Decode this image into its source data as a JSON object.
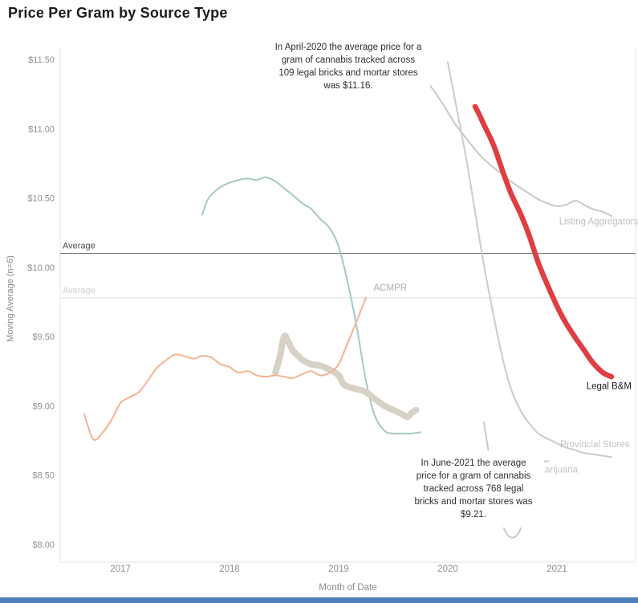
{
  "title": "Price Per Gram by Source Type",
  "footer": {
    "bar_color": "#4e7fba"
  },
  "chart_data": {
    "type": "line",
    "title": "Price Per Gram by Source Type",
    "x_axis": {
      "title": "Month of Date",
      "ticks": [
        {
          "v": 2017,
          "label": "2017"
        },
        {
          "v": 2018,
          "label": "2018"
        },
        {
          "v": 2019,
          "label": "2019"
        },
        {
          "v": 2020,
          "label": "2020"
        },
        {
          "v": 2021,
          "label": "2021"
        }
      ]
    },
    "y_axis": {
      "title": "Moving Average (n=6)",
      "ticks": [
        {
          "v": 11.5,
          "label": "$11.50"
        },
        {
          "v": 11.0,
          "label": "$11.00"
        },
        {
          "v": 10.5,
          "label": "$10.50"
        },
        {
          "v": 10.0,
          "label": "$10.00"
        },
        {
          "v": 9.5,
          "label": "$9.50"
        },
        {
          "v": 9.0,
          "label": "$9.00"
        },
        {
          "v": 8.5,
          "label": "$8.50"
        },
        {
          "v": 8.0,
          "label": "$8.00"
        }
      ],
      "range": [
        7.9,
        11.6
      ]
    },
    "reference_lines": [
      {
        "label": "Average",
        "value": 10.1,
        "color": "#5f5f5f",
        "label_color": "#4a4a4a"
      },
      {
        "label": "Average",
        "value": 9.78,
        "color": "#dcdcdc",
        "label_color": "#cfcfcf"
      }
    ],
    "series": [
      {
        "id": "teal",
        "label": "",
        "color": "#a6c9c3",
        "width": 2,
        "label_color": "#a6c9c3",
        "label_at": null,
        "points": [
          [
            2017.75,
            10.38
          ],
          [
            2017.79,
            10.47
          ],
          [
            2017.83,
            10.52
          ],
          [
            2017.92,
            10.58
          ],
          [
            2018.0,
            10.61
          ],
          [
            2018.08,
            10.63
          ],
          [
            2018.17,
            10.64
          ],
          [
            2018.25,
            10.63
          ],
          [
            2018.33,
            10.65
          ],
          [
            2018.42,
            10.62
          ],
          [
            2018.5,
            10.57
          ],
          [
            2018.58,
            10.52
          ],
          [
            2018.67,
            10.46
          ],
          [
            2018.75,
            10.42
          ],
          [
            2018.83,
            10.35
          ],
          [
            2018.92,
            10.28
          ],
          [
            2019.0,
            10.15
          ],
          [
            2019.08,
            9.9
          ],
          [
            2019.17,
            9.55
          ],
          [
            2019.25,
            9.18
          ],
          [
            2019.33,
            8.93
          ],
          [
            2019.42,
            8.82
          ],
          [
            2019.5,
            8.8
          ],
          [
            2019.58,
            8.8
          ],
          [
            2019.67,
            8.8
          ],
          [
            2019.75,
            8.81
          ]
        ]
      },
      {
        "id": "beige",
        "label": "",
        "color": "#d8d1c5",
        "width": 8,
        "label_color": "#d8d1c5",
        "label_at": null,
        "points": [
          [
            2018.42,
            9.24
          ],
          [
            2018.46,
            9.35
          ],
          [
            2018.5,
            9.5
          ],
          [
            2018.54,
            9.46
          ],
          [
            2018.58,
            9.4
          ],
          [
            2018.63,
            9.36
          ],
          [
            2018.67,
            9.33
          ],
          [
            2018.75,
            9.3
          ],
          [
            2018.83,
            9.29
          ],
          [
            2018.92,
            9.26
          ],
          [
            2019.0,
            9.22
          ],
          [
            2019.04,
            9.16
          ],
          [
            2019.08,
            9.14
          ],
          [
            2019.17,
            9.12
          ],
          [
            2019.25,
            9.1
          ],
          [
            2019.33,
            9.05
          ],
          [
            2019.42,
            9.0
          ],
          [
            2019.5,
            8.97
          ],
          [
            2019.58,
            8.94
          ],
          [
            2019.63,
            8.92
          ],
          [
            2019.67,
            8.95
          ],
          [
            2019.71,
            8.97
          ]
        ]
      },
      {
        "id": "acmpr",
        "label": "ACMPR",
        "color": "#f4b393",
        "width": 2,
        "label_color": "#b5aca6",
        "label_at": [
          2019.32,
          9.83
        ],
        "points": [
          [
            2016.67,
            8.94
          ],
          [
            2016.75,
            8.76
          ],
          [
            2016.83,
            8.8
          ],
          [
            2016.92,
            8.9
          ],
          [
            2017.0,
            9.02
          ],
          [
            2017.08,
            9.06
          ],
          [
            2017.17,
            9.1
          ],
          [
            2017.25,
            9.18
          ],
          [
            2017.33,
            9.27
          ],
          [
            2017.42,
            9.33
          ],
          [
            2017.5,
            9.37
          ],
          [
            2017.58,
            9.36
          ],
          [
            2017.67,
            9.34
          ],
          [
            2017.75,
            9.36
          ],
          [
            2017.83,
            9.35
          ],
          [
            2017.92,
            9.3
          ],
          [
            2018.0,
            9.28
          ],
          [
            2018.08,
            9.24
          ],
          [
            2018.17,
            9.25
          ],
          [
            2018.25,
            9.22
          ],
          [
            2018.33,
            9.21
          ],
          [
            2018.42,
            9.22
          ],
          [
            2018.5,
            9.21
          ],
          [
            2018.58,
            9.2
          ],
          [
            2018.67,
            9.23
          ],
          [
            2018.75,
            9.25
          ],
          [
            2018.83,
            9.22
          ],
          [
            2018.92,
            9.24
          ],
          [
            2019.0,
            9.3
          ],
          [
            2019.08,
            9.45
          ],
          [
            2019.17,
            9.62
          ],
          [
            2019.25,
            9.78
          ]
        ]
      },
      {
        "id": "listing-aggregators",
        "label": "Listing Aggregators",
        "color": "#c6cac4",
        "width": 2,
        "label_color": "#c2bfbc",
        "label_at": [
          2021.02,
          10.31
        ],
        "points": [
          [
            2019.58,
            11.33
          ],
          [
            2019.67,
            11.43
          ],
          [
            2019.75,
            11.4
          ],
          [
            2019.83,
            11.32
          ],
          [
            2019.92,
            11.22
          ],
          [
            2020.0,
            11.12
          ],
          [
            2020.08,
            11.02
          ],
          [
            2020.17,
            10.93
          ],
          [
            2020.25,
            10.85
          ],
          [
            2020.33,
            10.78
          ],
          [
            2020.42,
            10.72
          ],
          [
            2020.5,
            10.67
          ],
          [
            2020.58,
            10.62
          ],
          [
            2020.67,
            10.57
          ],
          [
            2020.75,
            10.53
          ],
          [
            2020.83,
            10.49
          ],
          [
            2020.92,
            10.46
          ],
          [
            2021.0,
            10.44
          ],
          [
            2021.08,
            10.45
          ],
          [
            2021.17,
            10.48
          ],
          [
            2021.25,
            10.45
          ],
          [
            2021.33,
            10.42
          ],
          [
            2021.42,
            10.4
          ],
          [
            2021.5,
            10.37
          ]
        ]
      },
      {
        "id": "provincial-stores",
        "label": "Provincial Stores",
        "color": "#c9cdc9",
        "width": 2,
        "label_color": "#c2c2be",
        "label_at": [
          2021.03,
          8.7
        ],
        "points": [
          [
            2020.0,
            11.48
          ],
          [
            2020.08,
            11.15
          ],
          [
            2020.17,
            10.78
          ],
          [
            2020.25,
            10.4
          ],
          [
            2020.33,
            10.02
          ],
          [
            2020.42,
            9.65
          ],
          [
            2020.5,
            9.35
          ],
          [
            2020.58,
            9.12
          ],
          [
            2020.67,
            8.96
          ],
          [
            2020.75,
            8.87
          ],
          [
            2020.83,
            8.8
          ],
          [
            2020.92,
            8.76
          ],
          [
            2021.0,
            8.73
          ],
          [
            2021.08,
            8.7
          ],
          [
            2021.17,
            8.68
          ],
          [
            2021.25,
            8.66
          ],
          [
            2021.33,
            8.65
          ],
          [
            2021.42,
            8.64
          ],
          [
            2021.5,
            8.63
          ]
        ]
      },
      {
        "id": "marijuana",
        "label": "Marijuana",
        "color": "#ccc9c4",
        "width": 2,
        "label_color": "#c6c3bf",
        "label_at": [
          2020.82,
          8.52
        ],
        "points": [
          [
            2020.33,
            8.88
          ],
          [
            2020.42,
            8.45
          ],
          [
            2020.5,
            8.15
          ],
          [
            2020.58,
            8.05
          ],
          [
            2020.67,
            8.12
          ],
          [
            2020.75,
            8.42
          ],
          [
            2020.83,
            8.58
          ],
          [
            2020.92,
            8.6
          ]
        ]
      },
      {
        "id": "legal-bm",
        "label": "Legal B&M",
        "color": "#df3e42",
        "width": 6.5,
        "label_color": "#1c1c1c",
        "label_at": [
          2021.27,
          9.12
        ],
        "points": [
          [
            2020.25,
            11.16
          ],
          [
            2020.29,
            11.1
          ],
          [
            2020.33,
            11.03
          ],
          [
            2020.42,
            10.88
          ],
          [
            2020.5,
            10.7
          ],
          [
            2020.58,
            10.53
          ],
          [
            2020.67,
            10.38
          ],
          [
            2020.75,
            10.22
          ],
          [
            2020.83,
            10.03
          ],
          [
            2020.92,
            9.86
          ],
          [
            2021.0,
            9.72
          ],
          [
            2021.08,
            9.6
          ],
          [
            2021.17,
            9.49
          ],
          [
            2021.25,
            9.4
          ],
          [
            2021.33,
            9.31
          ],
          [
            2021.42,
            9.24
          ],
          [
            2021.5,
            9.21
          ]
        ]
      }
    ],
    "annotations": [
      {
        "text": "In April-2020 the average price for a gram of cannabis tracked across 109 legal bricks and mortar stores was $11.16."
      },
      {
        "text": "In June-2021 the average price for a gram of cannabis tracked across 768 legal bricks and mortar stores was $9.21."
      }
    ]
  }
}
